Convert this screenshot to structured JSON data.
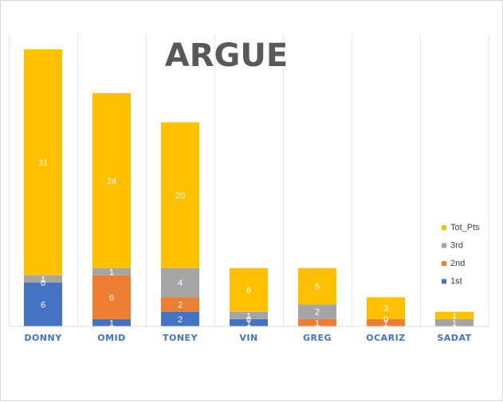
{
  "chart_data": {
    "type": "bar",
    "stacked": true,
    "title": "ARGUE",
    "xlabel": "",
    "ylabel": "",
    "ylim": [
      0,
      38
    ],
    "grid": "vertical category separators",
    "legend_position": "right",
    "categories": [
      "DONNY",
      "OMID",
      "TONEY",
      "VIN",
      "GREG",
      "OCARIZ",
      "SADAT"
    ],
    "series": [
      {
        "name": "1st",
        "color": "#4472c4",
        "values": [
          6,
          1,
          2,
          1,
          0,
          0,
          0
        ],
        "labels": [
          "6",
          "1",
          "2",
          "1",
          "",
          "",
          ""
        ]
      },
      {
        "name": "2nd",
        "color": "#ed7d31",
        "values": [
          0,
          6,
          2,
          0,
          1,
          1,
          0
        ],
        "labels": [
          "0",
          "6",
          "2",
          "0",
          "1",
          "1",
          ""
        ]
      },
      {
        "name": "3rd",
        "color": "#a5a5a5",
        "values": [
          1,
          1,
          4,
          1,
          2,
          0,
          1
        ],
        "labels": [
          "1",
          "1",
          "4",
          "1",
          "2",
          "0",
          "1"
        ]
      },
      {
        "name": "Tot_Pts",
        "color": "#ffc000",
        "values": [
          31,
          24,
          20,
          6,
          5,
          3,
          1
        ],
        "labels": [
          "31",
          "24",
          "20",
          "6",
          "5",
          "3",
          "1"
        ]
      }
    ]
  }
}
